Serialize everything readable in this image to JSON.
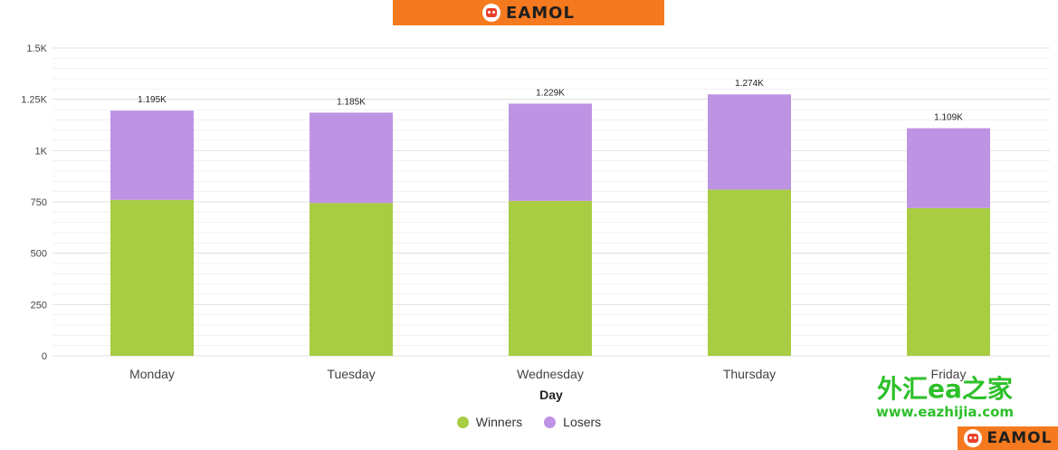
{
  "banner": {
    "logo_text": "EAMOL"
  },
  "bottom_logo": {
    "logo_text": "EAMOL"
  },
  "watermark": {
    "line1": "外汇ea之家",
    "line2": "www.eazhijia.com"
  },
  "colors": {
    "winners": "#a8cc42",
    "losers": "#be93e4",
    "banner": "#f57a1f"
  },
  "chart_data": {
    "type": "bar",
    "stacked": true,
    "categories": [
      "Monday",
      "Tuesday",
      "Wednesday",
      "Thursday",
      "Friday"
    ],
    "series": [
      {
        "name": "Winners",
        "values": [
          760,
          745,
          755,
          810,
          720
        ]
      },
      {
        "name": "Losers",
        "values": [
          435,
          440,
          474,
          464,
          389
        ]
      }
    ],
    "totals": [
      1195,
      1185,
      1229,
      1274,
      1109
    ],
    "total_labels": [
      "1.195K",
      "1.185K",
      "1.229K",
      "1.274K",
      "1.109K"
    ],
    "ylim": [
      0,
      1500
    ],
    "yticks": [
      0,
      250,
      500,
      750,
      1000,
      1250,
      1500
    ],
    "ytick_labels": [
      "0",
      "250",
      "500",
      "750",
      "1K",
      "1.25K",
      "1.5K"
    ],
    "xlabel": "Day",
    "ylabel": "",
    "grid": true,
    "legend": "bottom-center"
  }
}
